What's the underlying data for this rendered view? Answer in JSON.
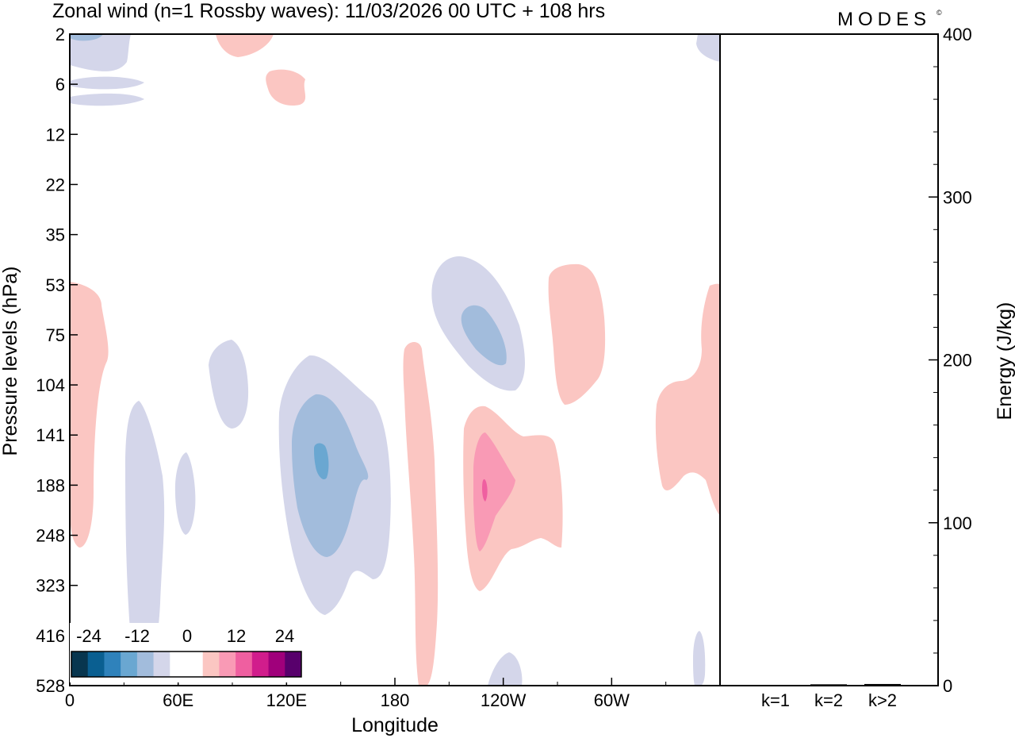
{
  "chart_data": [
    {
      "type": "heatmap",
      "title": "Zonal wind (n=1 Rossby waves):  11/03/2026  00 UTC  + 108 hrs",
      "brand": "MODES",
      "brand_mark": "©",
      "xlabel": "Longitude",
      "ylabel": "Pressure levels (hPa)",
      "x_ticks": [
        "0",
        "60E",
        "120E",
        "180",
        "120W",
        "60W"
      ],
      "x_tick_values": [
        0,
        60,
        120,
        180,
        240,
        300
      ],
      "xlim": [
        0,
        360
      ],
      "y_ticks": [
        "2",
        "6",
        "12",
        "22",
        "35",
        "53",
        "75",
        "104",
        "141",
        "188",
        "248",
        "323",
        "416",
        "528"
      ],
      "y_scale": "log-pressure (top 2 hPa, bottom 528 hPa)",
      "colorbar": {
        "labels": [
          "-24",
          "-12",
          "0",
          "12",
          "24"
        ],
        "colors": [
          "#08364f",
          "#0a5f91",
          "#2f82bb",
          "#6aa7d1",
          "#a2bcdc",
          "#d4d6ea",
          "#ffffff",
          "#ffffff",
          "#fbc6c2",
          "#f99ab5",
          "#ef5fa0",
          "#d11d8c",
          "#a0007b",
          "#58006c"
        ]
      },
      "contours": {
        "neg1": "#d4d6ea",
        "neg2": "#a2bcdc",
        "neg3": "#6aa7d1",
        "pos1": "#fbc6c2",
        "pos2": "#f99ab5",
        "pos3": "#ef5fa0"
      }
    },
    {
      "type": "bar",
      "categories": [
        "k=1",
        "k=2",
        "k>2"
      ],
      "values": [
        0.4,
        0.8,
        1.0
      ],
      "ylabel": "Energy (J/kg)",
      "ylim": [
        0,
        400
      ],
      "y_ticks": [
        "0",
        "100",
        "200",
        "300",
        "400"
      ],
      "y_tick_values": [
        0,
        100,
        200,
        300,
        400
      ]
    }
  ]
}
